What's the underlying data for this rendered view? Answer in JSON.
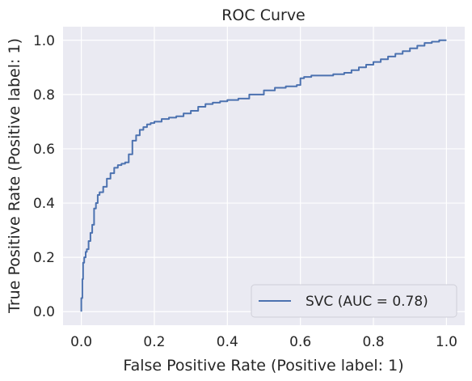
{
  "chart_data": {
    "type": "line",
    "title": "ROC Curve",
    "xlabel": "False Positive Rate (Positive label: 1)",
    "ylabel": "True Positive Rate (Positive label: 1)",
    "xlim": [
      -0.05,
      1.05
    ],
    "ylim": [
      -0.05,
      1.05
    ],
    "xticks": [
      0.0,
      0.2,
      0.4,
      0.6,
      0.8,
      1.0
    ],
    "yticks": [
      0.0,
      0.2,
      0.4,
      0.6,
      0.8,
      1.0
    ],
    "xtick_labels": [
      "0.0",
      "0.2",
      "0.4",
      "0.6",
      "0.8",
      "1.0"
    ],
    "ytick_labels": [
      "0.0",
      "0.2",
      "0.4",
      "0.6",
      "0.8",
      "1.0"
    ],
    "grid": true,
    "background": "#eaeaf2",
    "grid_color": "#ffffff",
    "legend_position": "lower-right",
    "series": [
      {
        "name": "SVC (AUC = 0.78)",
        "color": "#4c72b0",
        "x": [
          0.0,
          0.0,
          0.003,
          0.005,
          0.008,
          0.012,
          0.015,
          0.02,
          0.025,
          0.03,
          0.035,
          0.04,
          0.045,
          0.05,
          0.06,
          0.07,
          0.08,
          0.09,
          0.1,
          0.11,
          0.12,
          0.13,
          0.14,
          0.15,
          0.16,
          0.17,
          0.18,
          0.19,
          0.2,
          0.22,
          0.24,
          0.26,
          0.28,
          0.3,
          0.32,
          0.34,
          0.36,
          0.38,
          0.4,
          0.43,
          0.46,
          0.5,
          0.53,
          0.56,
          0.59,
          0.6,
          0.61,
          0.63,
          0.66,
          0.69,
          0.72,
          0.74,
          0.76,
          0.78,
          0.8,
          0.82,
          0.84,
          0.86,
          0.88,
          0.9,
          0.92,
          0.94,
          0.96,
          0.98,
          0.99,
          1.0
        ],
        "y": [
          0.0,
          0.05,
          0.12,
          0.18,
          0.2,
          0.22,
          0.23,
          0.26,
          0.29,
          0.32,
          0.38,
          0.4,
          0.43,
          0.44,
          0.46,
          0.49,
          0.51,
          0.53,
          0.54,
          0.545,
          0.55,
          0.58,
          0.63,
          0.65,
          0.67,
          0.68,
          0.69,
          0.695,
          0.7,
          0.71,
          0.715,
          0.72,
          0.73,
          0.74,
          0.755,
          0.765,
          0.77,
          0.775,
          0.78,
          0.785,
          0.8,
          0.815,
          0.825,
          0.83,
          0.835,
          0.86,
          0.865,
          0.87,
          0.87,
          0.875,
          0.88,
          0.89,
          0.9,
          0.91,
          0.92,
          0.93,
          0.94,
          0.95,
          0.96,
          0.97,
          0.98,
          0.99,
          0.995,
          1.0,
          1.0,
          1.0
        ]
      }
    ]
  }
}
